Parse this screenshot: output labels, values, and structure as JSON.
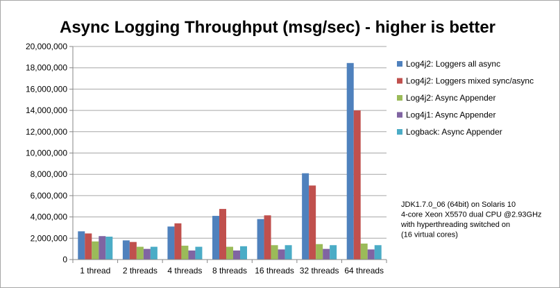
{
  "chart_data": {
    "type": "bar",
    "title": "Async Logging Throughput (msg/sec) - higher is better",
    "xlabel": "",
    "ylabel": "",
    "ylim": [
      0,
      20000000
    ],
    "y_ticks": [
      "0",
      "2,000,000",
      "4,000,000",
      "6,000,000",
      "8,000,000",
      "10,000,000",
      "12,000,000",
      "14,000,000",
      "16,000,000",
      "18,000,000",
      "20,000,000"
    ],
    "grid": "horizontal",
    "legend_position": "right",
    "categories": [
      "1 thread",
      "2 threads",
      "4 threads",
      "8 threads",
      "16 threads",
      "32 threads",
      "64 threads"
    ],
    "series": [
      {
        "name": "Log4j2: Loggers all async",
        "color": "#4f81bd",
        "values": [
          2650000,
          1800000,
          3100000,
          4100000,
          3800000,
          8100000,
          18450000
        ]
      },
      {
        "name": "Log4j2: Loggers mixed sync/async",
        "color": "#c0504d",
        "values": [
          2450000,
          1650000,
          3400000,
          4750000,
          4150000,
          6950000,
          14000000
        ]
      },
      {
        "name": "Log4j2: Async Appender",
        "color": "#9bbb59",
        "values": [
          1700000,
          1200000,
          1300000,
          1200000,
          1350000,
          1450000,
          1500000
        ]
      },
      {
        "name": "Log4j1: Async Appender",
        "color": "#8064a2",
        "values": [
          2200000,
          1000000,
          850000,
          850000,
          950000,
          1000000,
          950000
        ]
      },
      {
        "name": "Logback: Async Appender",
        "color": "#4bacc6",
        "values": [
          2150000,
          1200000,
          1200000,
          1250000,
          1350000,
          1350000,
          1350000
        ]
      }
    ],
    "annotation": [
      "JDK1.7.0_06 (64bit) on Solaris 10",
      "4-core Xeon X5570 dual CPU @2.93GHz",
      "with hyperthreading switched on",
      "(16 virtual cores)"
    ]
  }
}
